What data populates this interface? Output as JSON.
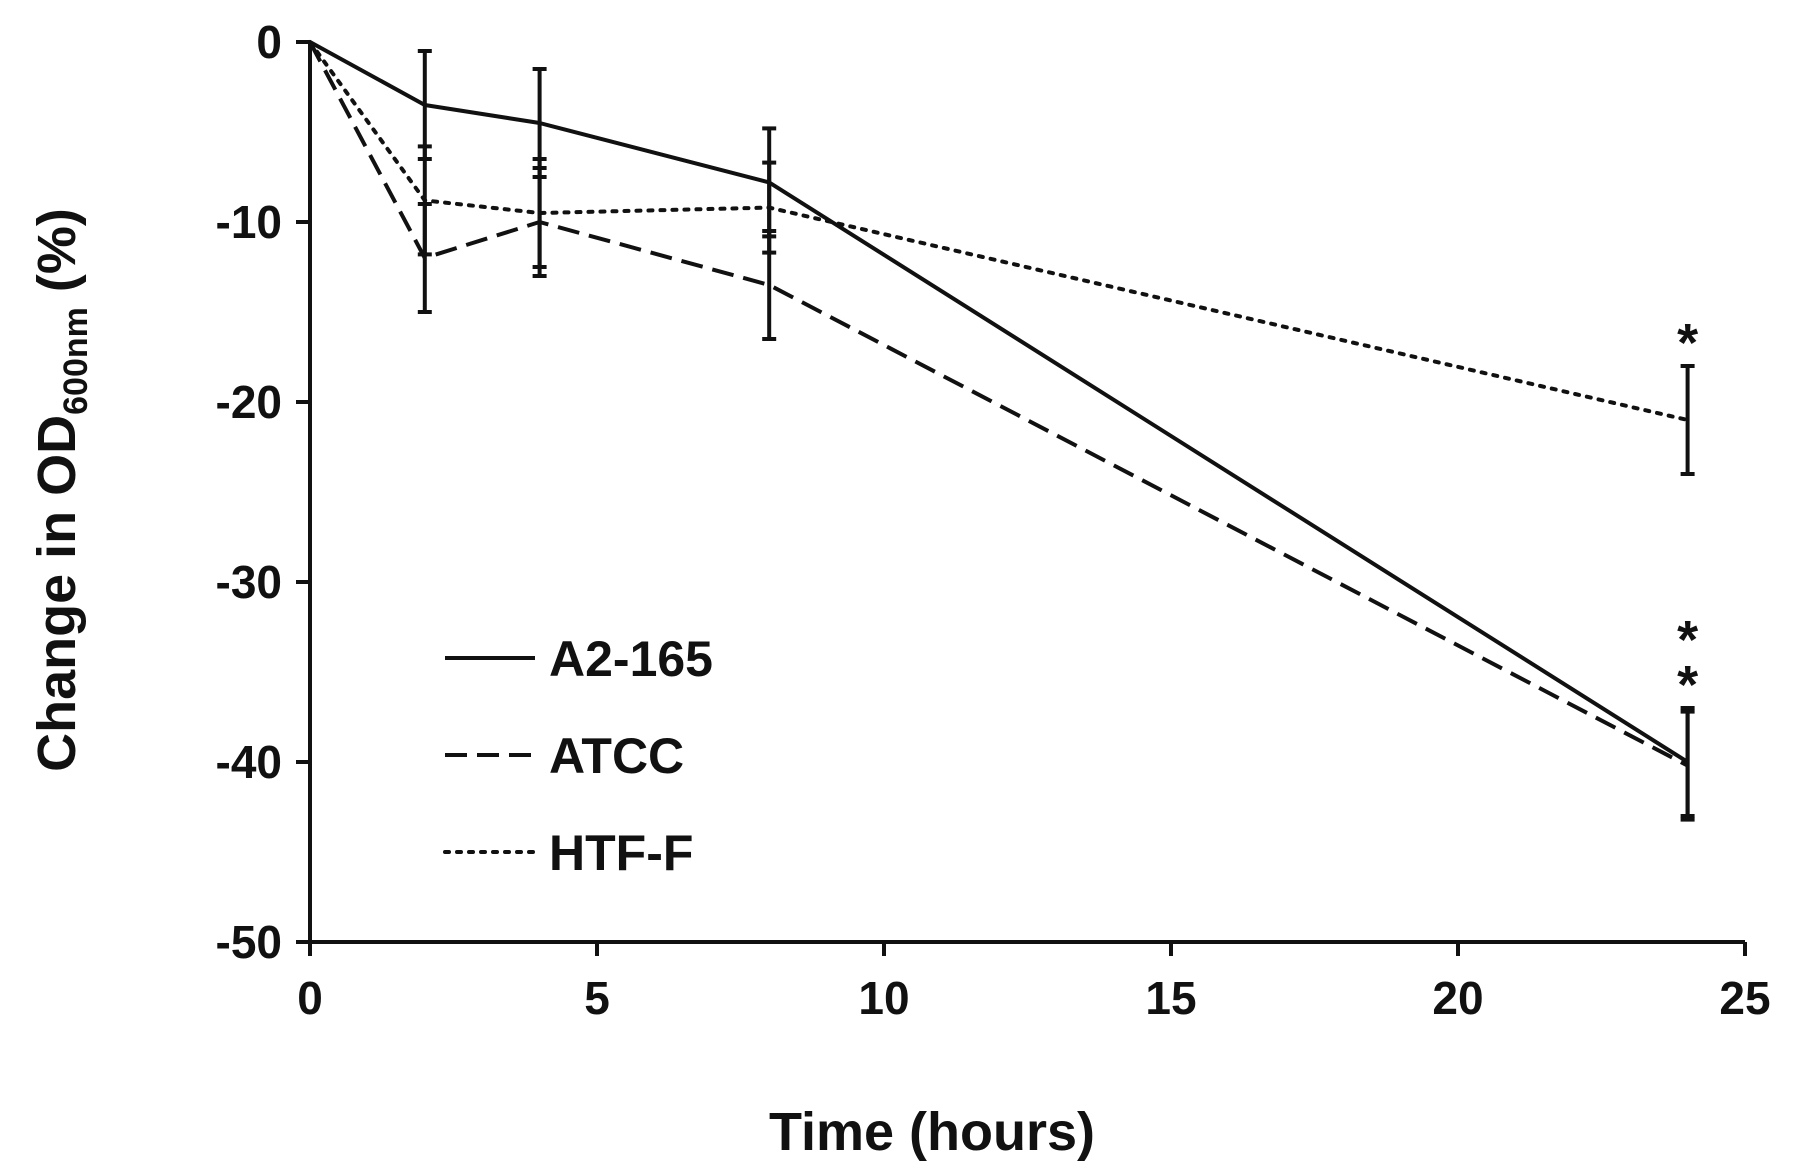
{
  "chart_data": {
    "type": "line",
    "title": "",
    "xlabel": "Time (hours)",
    "ylabel": {
      "prefix": "Change in OD",
      "subscript": "600nm",
      "suffix": " (%)"
    },
    "xlim": [
      0,
      25
    ],
    "ylim": [
      -50,
      0
    ],
    "xticks": [
      0,
      5,
      10,
      15,
      20,
      25
    ],
    "yticks": [
      0,
      -10,
      -20,
      -30,
      -40,
      -50
    ],
    "xtick_labels": [
      "0",
      "5",
      "10",
      "15",
      "20",
      "25"
    ],
    "ytick_labels": [
      "0",
      "-10",
      "-20",
      "-30",
      "-40",
      "-50"
    ],
    "grid": false,
    "legend_position": "lower-left",
    "x": [
      0,
      2,
      4,
      8,
      24
    ],
    "series": [
      {
        "name": "A2-165",
        "style": "solid",
        "values": [
          0,
          -3.5,
          -4.5,
          -7.8,
          -40
        ],
        "errors": [
          0,
          3,
          3,
          3,
          3
        ]
      },
      {
        "name": "ATCC",
        "style": "dashed",
        "values": [
          0,
          -12,
          -10,
          -13.5,
          -40.2
        ],
        "errors": [
          0,
          3,
          3,
          3,
          3
        ]
      },
      {
        "name": "HTF-F",
        "style": "dotted",
        "values": [
          0,
          -8.8,
          -9.5,
          -9.2,
          -21
        ],
        "errors": [
          0,
          3,
          3,
          2.5,
          3
        ]
      }
    ],
    "annotations": [
      {
        "text": "*",
        "x": 24,
        "y": -16.5
      },
      {
        "text": "*",
        "x": 24,
        "y": -33
      },
      {
        "text": "*",
        "x": 24,
        "y": -35.5
      }
    ],
    "colors": {
      "line": "#111111",
      "background": "#ffffff"
    }
  }
}
